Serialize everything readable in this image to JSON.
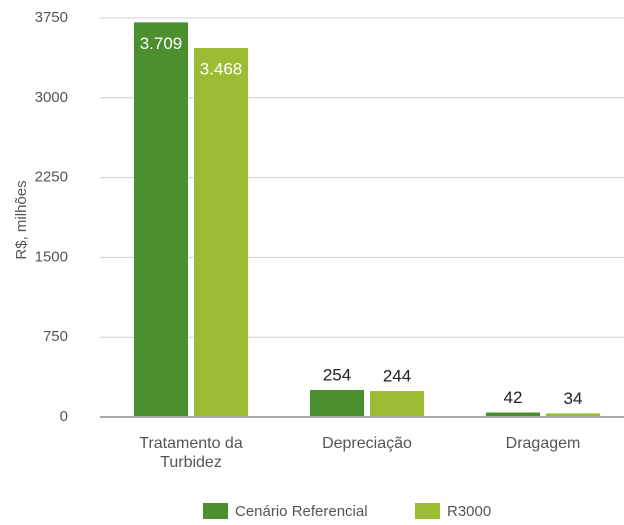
{
  "chart_data": {
    "type": "bar",
    "y_label": "R$, milhões",
    "categories": [
      "Tratamento da Turbidez",
      "Depreciação",
      "Dragagem"
    ],
    "series": [
      {
        "name": "Cenário Referencial",
        "color": "#4b8f2f",
        "values": [
          3709,
          254,
          42
        ],
        "value_labels": [
          "3.709",
          "254",
          "42"
        ]
      },
      {
        "name": "R3000",
        "color": "#9bbd33",
        "values": [
          3468,
          244,
          34
        ],
        "value_labels": [
          "3.468",
          "244",
          "34"
        ]
      }
    ],
    "ylim": [
      0,
      3750
    ],
    "yticks": [
      0,
      750,
      1500,
      2250,
      3000,
      3750
    ],
    "grid": true
  }
}
